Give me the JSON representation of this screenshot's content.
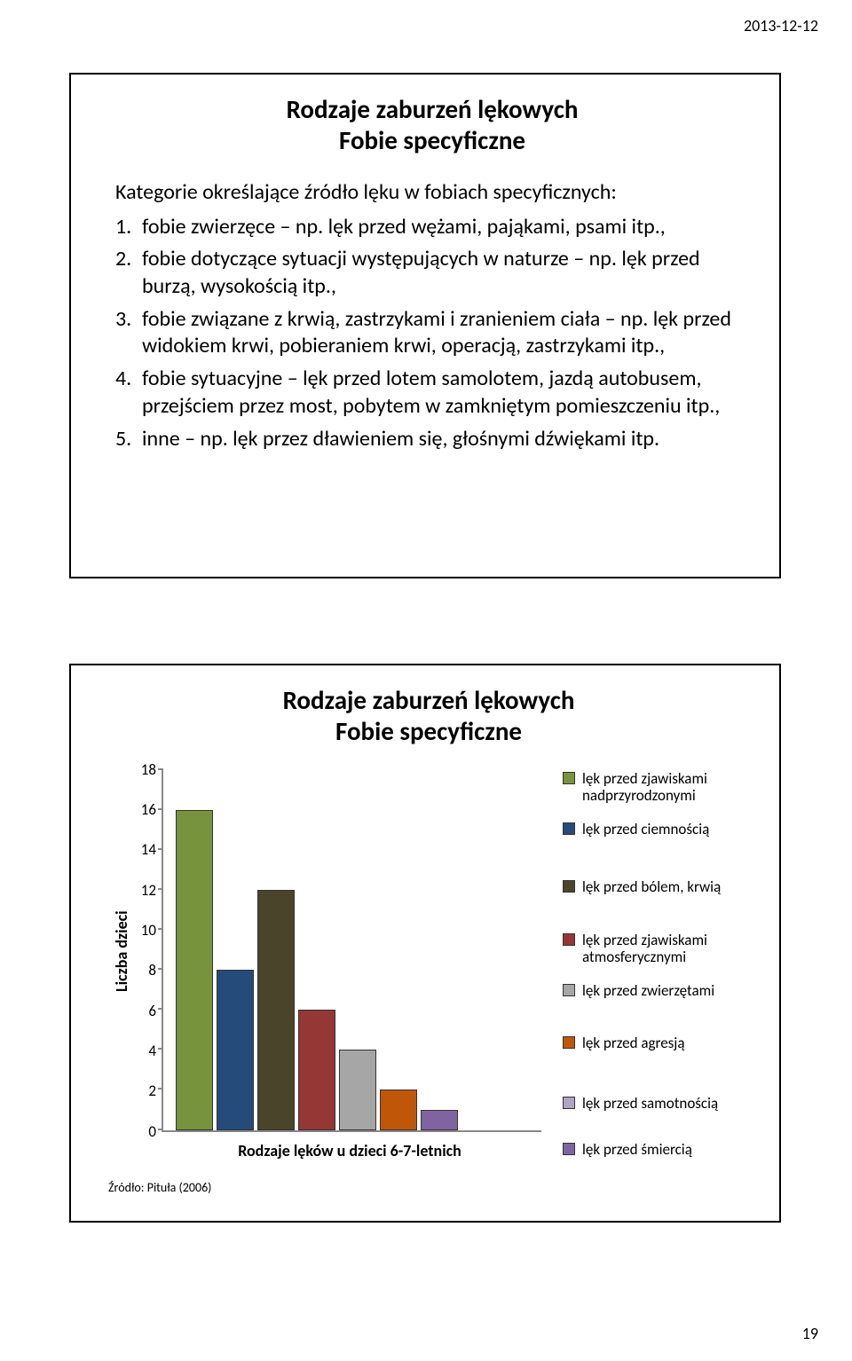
{
  "header": {
    "date": "2013-12-12"
  },
  "footer": {
    "page": "19"
  },
  "slide1": {
    "title_line1": "Rodzaje zaburzeń lękowych",
    "title_line2": "Fobie specyficzne",
    "intro": "Kategorie określające źródło lęku w fobiach specyficznych:",
    "items": [
      "fobie zwierzęce – np. lęk przed wężami, pająkami, psami itp.,",
      "fobie dotyczące sytuacji występujących w naturze – np. lęk przed burzą, wysokością itp.,",
      "fobie związane z krwią, zastrzykami i zranieniem ciała – np. lęk przed widokiem krwi, pobieraniem krwi, operacją, zastrzykami itp.,",
      "fobie sytuacyjne – lęk przed lotem samolotem, jazdą autobusem, przejściem przez most, pobytem w zamkniętym pomieszczeniu itp.,",
      "inne – np. lęk przez dławieniem się, głośnymi dźwiękami itp."
    ]
  },
  "slide2": {
    "title_line1": "Rodzaje zaburzeń lękowych",
    "title_line2": "Fobie specyficzne",
    "chart": {
      "type": "bar",
      "ylabel": "Liczba dzieci",
      "xlabel": "Rodzaje lęków u dzieci 6-7-letnich",
      "ylim": [
        0,
        18
      ],
      "ytick_step": 2,
      "yticks": [
        "18",
        "16",
        "14",
        "12",
        "10",
        "8",
        "6",
        "4",
        "2",
        "0"
      ],
      "axis_color": "#888888",
      "background_color": "#ffffff",
      "bars": [
        {
          "value": 16,
          "color": "#77933c"
        },
        {
          "value": 8,
          "color": "#254b7a"
        },
        {
          "value": 12,
          "color": "#4a452a"
        },
        {
          "value": 6,
          "color": "#953735"
        },
        {
          "value": 4,
          "color": "#a6a6a6"
        },
        {
          "value": 2,
          "color": "#c05708"
        },
        {
          "value": 1,
          "color": "#8064a2"
        }
      ],
      "legend": [
        {
          "label": "lęk przed zjawiskami nadprzyrodzonymi",
          "color": "#77933c"
        },
        {
          "label": "lęk przed ciemnością",
          "color": "#254b7a"
        },
        {
          "label": "lęk przed bólem, krwią",
          "color": "#4a452a"
        },
        {
          "label": "lęk przed zjawiskami atmosferycznymi",
          "color": "#953735"
        },
        {
          "label": "lęk przed zwierzętami",
          "color": "#a6a6a6"
        },
        {
          "label": "lęk przed agresją",
          "color": "#c05708"
        },
        {
          "label": "lęk przed samotnością",
          "color": "#b2a2c7"
        },
        {
          "label": "lęk przed śmiercią",
          "color": "#8064a2"
        }
      ]
    },
    "source": "Źródło: Pituła (2006)"
  }
}
